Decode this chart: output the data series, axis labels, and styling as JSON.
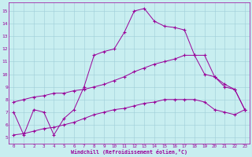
{
  "bg_color": "#c8eef0",
  "grid_color": "#9ecdd8",
  "line_color": "#990099",
  "xlabel": "Windchill (Refroidissement éolien,°C)",
  "ylim": [
    4.5,
    15.7
  ],
  "xlim": [
    -0.5,
    23.5
  ],
  "yticks": [
    5,
    6,
    7,
    8,
    9,
    10,
    11,
    12,
    13,
    14,
    15
  ],
  "xticks": [
    0,
    1,
    2,
    3,
    4,
    5,
    6,
    7,
    8,
    9,
    10,
    11,
    12,
    13,
    14,
    15,
    16,
    17,
    18,
    19,
    20,
    21,
    22,
    23
  ],
  "line1_x": [
    0,
    1,
    2,
    3,
    4,
    5,
    6,
    7,
    8,
    9,
    10,
    11,
    12,
    13,
    14,
    15,
    16,
    17,
    18,
    19,
    20,
    21,
    22,
    23
  ],
  "line1_y": [
    7.0,
    5.2,
    7.2,
    7.0,
    5.2,
    6.5,
    7.2,
    9.0,
    11.5,
    11.8,
    12.0,
    13.3,
    15.0,
    15.2,
    14.2,
    13.8,
    13.7,
    13.5,
    11.5,
    11.5,
    9.8,
    9.2,
    8.8,
    7.2
  ],
  "line2_x": [
    0,
    1,
    2,
    3,
    4,
    5,
    6,
    7,
    8,
    9,
    10,
    11,
    12,
    13,
    14,
    15,
    16,
    17,
    18,
    19,
    20,
    21,
    22,
    23
  ],
  "line2_y": [
    7.8,
    8.0,
    8.2,
    8.3,
    8.5,
    8.5,
    8.7,
    8.8,
    9.0,
    9.2,
    9.5,
    9.8,
    10.2,
    10.5,
    10.8,
    11.0,
    11.2,
    11.5,
    11.5,
    10.0,
    9.8,
    9.0,
    8.8,
    7.2
  ],
  "line3_x": [
    0,
    1,
    2,
    3,
    4,
    5,
    6,
    7,
    8,
    9,
    10,
    11,
    12,
    13,
    14,
    15,
    16,
    17,
    18,
    19,
    20,
    21,
    22,
    23
  ],
  "line3_y": [
    5.2,
    5.3,
    5.5,
    5.7,
    5.8,
    6.0,
    6.2,
    6.5,
    6.8,
    7.0,
    7.2,
    7.3,
    7.5,
    7.7,
    7.8,
    8.0,
    8.0,
    8.0,
    8.0,
    7.8,
    7.2,
    7.0,
    6.8,
    7.2
  ]
}
